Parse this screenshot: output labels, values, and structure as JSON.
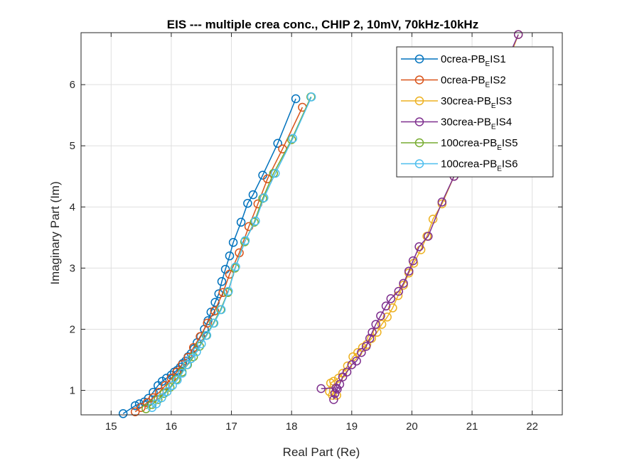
{
  "chart_data": {
    "type": "line",
    "title": "EIS --- multiple crea conc., CHIP 2, 10mV, 70kHz-10kHz",
    "xlabel": "Real Part (Re)",
    "ylabel": "Imaginary Part (Im)",
    "xlim": [
      14.5,
      22.5
    ],
    "ylim": [
      0.6,
      6.85
    ],
    "xticks": [
      "15",
      "16",
      "17",
      "18",
      "19",
      "20",
      "21",
      "22"
    ],
    "yticks": [
      "1",
      "2",
      "3",
      "4",
      "5",
      "6"
    ],
    "grid": true,
    "marker": "circle",
    "legend_position": "top-right",
    "series": [
      {
        "name_main": "0crea-PB",
        "name_sub": "E",
        "name_tail": "IS1",
        "color": "#0072BD",
        "x": [
          18.07,
          17.77,
          17.52,
          17.36,
          17.27,
          17.16,
          17.03,
          16.97,
          16.9,
          16.84,
          16.79,
          16.73,
          16.66,
          16.61,
          16.55,
          16.49,
          16.43,
          16.38,
          16.33,
          16.28,
          16.24,
          16.19,
          16.15,
          16.1,
          16.05,
          16.0,
          15.92,
          15.85,
          15.78,
          15.7,
          15.62,
          15.55,
          15.47,
          15.4,
          15.2
        ],
        "y": [
          5.77,
          5.04,
          4.52,
          4.2,
          4.06,
          3.75,
          3.42,
          3.2,
          2.98,
          2.78,
          2.58,
          2.44,
          2.28,
          2.14,
          2.0,
          1.88,
          1.78,
          1.68,
          1.6,
          1.55,
          1.48,
          1.44,
          1.38,
          1.33,
          1.3,
          1.25,
          1.2,
          1.15,
          1.08,
          0.97,
          0.87,
          0.81,
          0.78,
          0.75,
          0.62
        ]
      },
      {
        "name_main": "0crea-PB",
        "name_sub": "E",
        "name_tail": "IS2",
        "color": "#D95319",
        "x": [
          18.18,
          17.85,
          17.6,
          17.44,
          17.29,
          17.13,
          16.97,
          16.86,
          16.72,
          16.6,
          16.48,
          16.37,
          16.28,
          16.18,
          16.09,
          16.0,
          15.9,
          15.8,
          15.7,
          15.6,
          15.5,
          15.4
        ],
        "y": [
          5.63,
          4.95,
          4.46,
          4.05,
          3.68,
          3.25,
          2.9,
          2.6,
          2.3,
          2.1,
          1.88,
          1.7,
          1.54,
          1.42,
          1.3,
          1.2,
          1.08,
          0.97,
          0.88,
          0.8,
          0.72,
          0.65
        ]
      },
      {
        "name_main": "30crea-PB",
        "name_sub": "E",
        "name_tail": "IS3",
        "color": "#EDB120",
        "x": [
          21.77,
          21.58,
          21.37,
          21.15,
          20.92,
          20.7,
          20.5,
          20.35,
          20.25,
          20.15,
          20.03,
          19.95,
          19.86,
          19.77,
          19.68,
          19.59,
          19.5,
          19.42,
          19.33,
          19.25,
          19.18,
          19.1,
          19.02,
          18.93,
          18.85,
          18.78,
          18.7,
          18.65,
          18.63,
          18.68,
          18.75
        ],
        "y": [
          6.82,
          6.33,
          5.85,
          5.44,
          5.05,
          4.5,
          4.05,
          3.8,
          3.52,
          3.3,
          3.08,
          2.92,
          2.72,
          2.55,
          2.35,
          2.2,
          2.08,
          1.95,
          1.85,
          1.75,
          1.7,
          1.62,
          1.55,
          1.4,
          1.28,
          1.2,
          1.15,
          1.12,
          0.98,
          0.92,
          0.92
        ]
      },
      {
        "name_main": "30crea-PB",
        "name_sub": "E",
        "name_tail": "IS4",
        "color": "#7E2F8E",
        "x": [
          21.77,
          21.55,
          21.35,
          21.14,
          20.92,
          20.7,
          20.5,
          20.27,
          20.12,
          20.02,
          19.95,
          19.86,
          19.78,
          19.65,
          19.57,
          19.48,
          19.4,
          19.34,
          19.3,
          19.24,
          19.16,
          19.08,
          19.0,
          18.92,
          18.85,
          18.8,
          18.76,
          18.72,
          18.7,
          18.74,
          18.49
        ],
        "y": [
          6.82,
          6.33,
          5.85,
          5.44,
          5.05,
          4.5,
          4.08,
          3.52,
          3.35,
          3.12,
          2.95,
          2.75,
          2.62,
          2.5,
          2.38,
          2.22,
          2.08,
          1.95,
          1.85,
          1.72,
          1.62,
          1.48,
          1.42,
          1.3,
          1.22,
          1.1,
          1.02,
          0.95,
          0.85,
          1.04,
          1.03
        ]
      },
      {
        "name_main": "100crea-PB",
        "name_sub": "E",
        "name_tail": "IS5",
        "color": "#77AC30",
        "x": [
          18.32,
          18.0,
          17.7,
          17.52,
          17.38,
          17.22,
          17.06,
          16.94,
          16.82,
          16.7,
          16.58,
          16.47,
          16.37,
          16.27,
          16.18,
          16.08,
          15.98,
          15.88,
          15.78,
          15.68,
          15.58
        ],
        "y": [
          5.8,
          5.1,
          4.55,
          4.14,
          3.75,
          3.43,
          3.0,
          2.6,
          2.32,
          2.1,
          1.9,
          1.72,
          1.55,
          1.42,
          1.3,
          1.18,
          1.05,
          0.95,
          0.85,
          0.77,
          0.7
        ]
      },
      {
        "name_main": "100crea-PB",
        "name_sub": "E",
        "name_tail": "IS6",
        "color": "#4DBEEE",
        "x": [
          18.33,
          18.02,
          17.73,
          17.54,
          17.4,
          17.23,
          17.07,
          16.95,
          16.83,
          16.71,
          16.59,
          16.5,
          16.42,
          16.33,
          16.26,
          16.18,
          16.1,
          16.02,
          15.93,
          15.84,
          15.75,
          15.68
        ],
        "y": [
          5.8,
          5.12,
          4.55,
          4.15,
          3.77,
          3.45,
          3.02,
          2.62,
          2.32,
          2.1,
          1.9,
          1.76,
          1.63,
          1.52,
          1.42,
          1.28,
          1.17,
          1.08,
          0.98,
          0.88,
          0.78,
          0.72
        ]
      }
    ]
  }
}
